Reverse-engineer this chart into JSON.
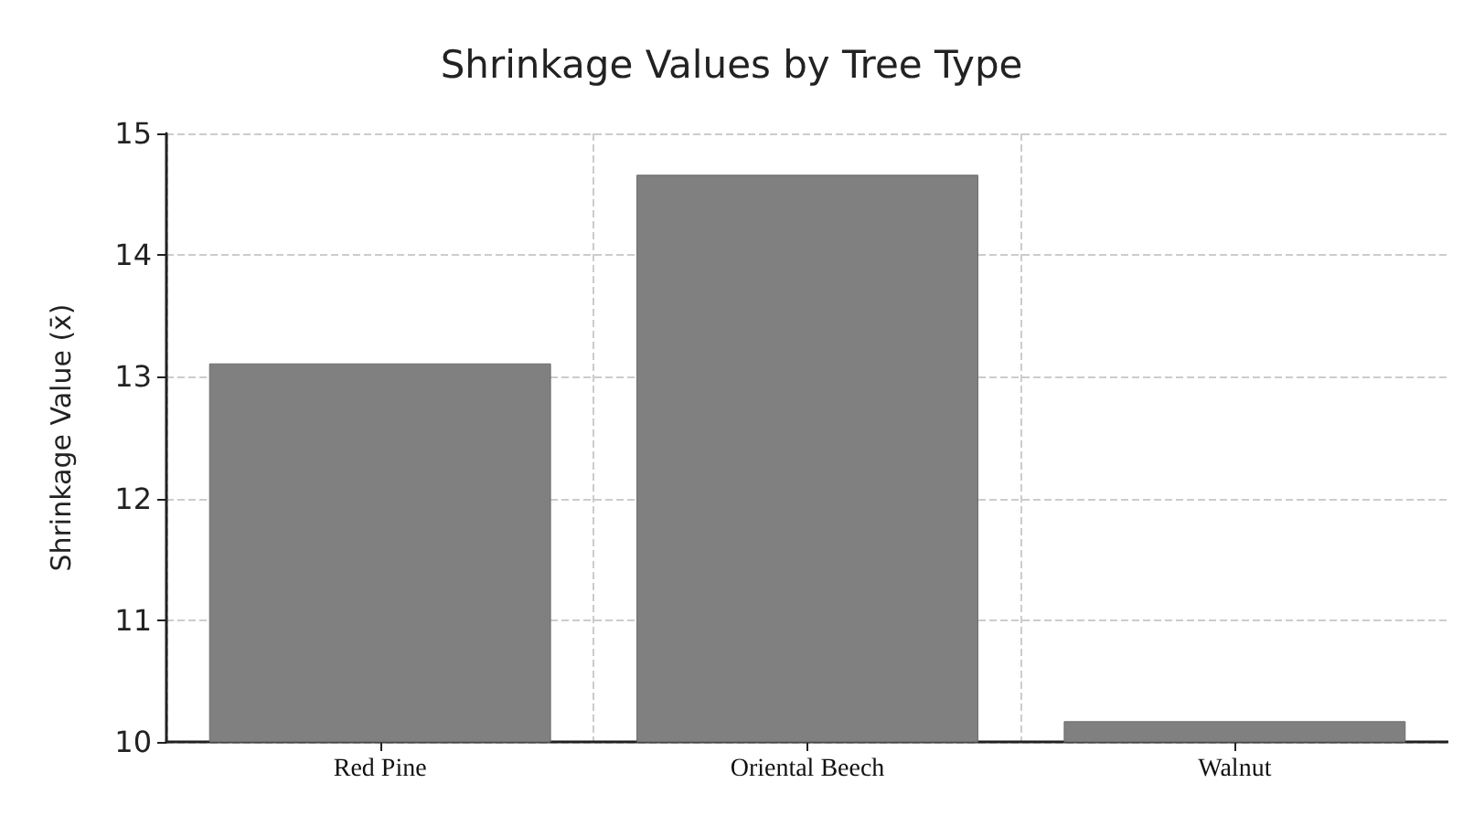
{
  "chart_data": {
    "type": "bar",
    "title": "Shrinkage Values by Tree Type",
    "ylabel": "Shrinkage Value (x̄)",
    "categories": [
      "Red Pine",
      "Oriental Beech",
      "Walnut"
    ],
    "values": [
      13.11,
      14.66,
      10.17
    ],
    "color": "#808080",
    "ylim": [
      10,
      15
    ],
    "yticks": [
      10,
      11,
      12,
      13,
      14,
      15
    ],
    "grid": true
  }
}
